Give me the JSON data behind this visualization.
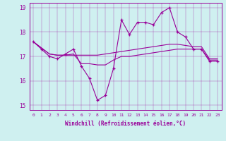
{
  "xlabel": "Windchill (Refroidissement éolien,°C)",
  "xlim": [
    -0.5,
    23.5
  ],
  "ylim": [
    14.8,
    19.2
  ],
  "yticks": [
    15,
    16,
    17,
    18,
    19
  ],
  "xticks": [
    0,
    1,
    2,
    3,
    4,
    5,
    6,
    7,
    8,
    9,
    10,
    11,
    12,
    13,
    14,
    15,
    16,
    17,
    18,
    19,
    20,
    21,
    22,
    23
  ],
  "bg_color": "#cff0f0",
  "line_color": "#990099",
  "line1": [
    17.6,
    17.3,
    17.0,
    16.9,
    17.1,
    17.3,
    16.6,
    16.1,
    15.2,
    15.4,
    16.5,
    18.5,
    17.9,
    18.4,
    18.4,
    18.3,
    18.8,
    19.0,
    18.0,
    17.8,
    17.3,
    17.3,
    16.8,
    16.8
  ],
  "line2": [
    17.6,
    17.35,
    17.1,
    17.05,
    17.05,
    17.05,
    17.05,
    17.05,
    17.05,
    17.1,
    17.15,
    17.2,
    17.25,
    17.3,
    17.35,
    17.4,
    17.45,
    17.5,
    17.5,
    17.45,
    17.4,
    17.4,
    16.9,
    16.9
  ],
  "line3": [
    17.6,
    17.35,
    17.1,
    17.05,
    17.05,
    17.1,
    16.7,
    16.7,
    16.65,
    16.65,
    16.85,
    17.0,
    17.0,
    17.05,
    17.1,
    17.15,
    17.2,
    17.25,
    17.3,
    17.3,
    17.3,
    17.3,
    16.85,
    16.85
  ]
}
